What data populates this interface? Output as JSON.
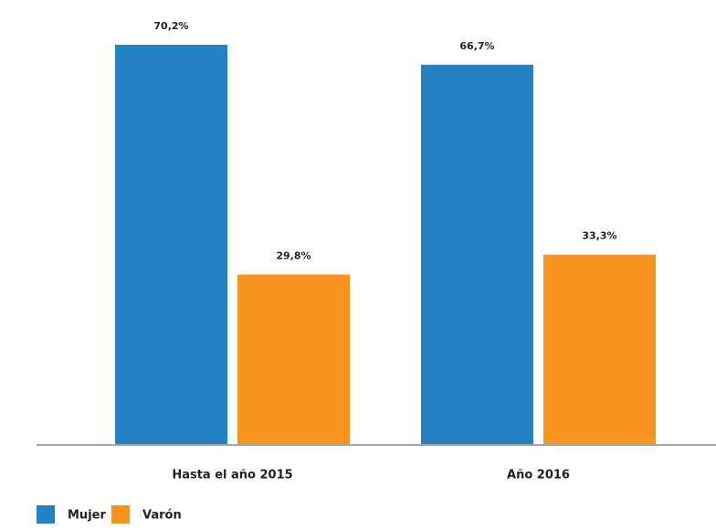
{
  "chart_data": {
    "type": "bar",
    "categories": [
      "Hasta el año 2015",
      "Año 2016"
    ],
    "series": [
      {
        "name": "Mujer",
        "color": "#2382c4",
        "values": [
          70.2,
          66.7
        ],
        "value_labels": [
          "70,2%",
          "66,7%"
        ]
      },
      {
        "name": "Varón",
        "color": "#f7941d",
        "values": [
          29.8,
          33.3
        ],
        "value_labels": [
          "29,8%",
          "33,3%"
        ]
      }
    ]
  }
}
